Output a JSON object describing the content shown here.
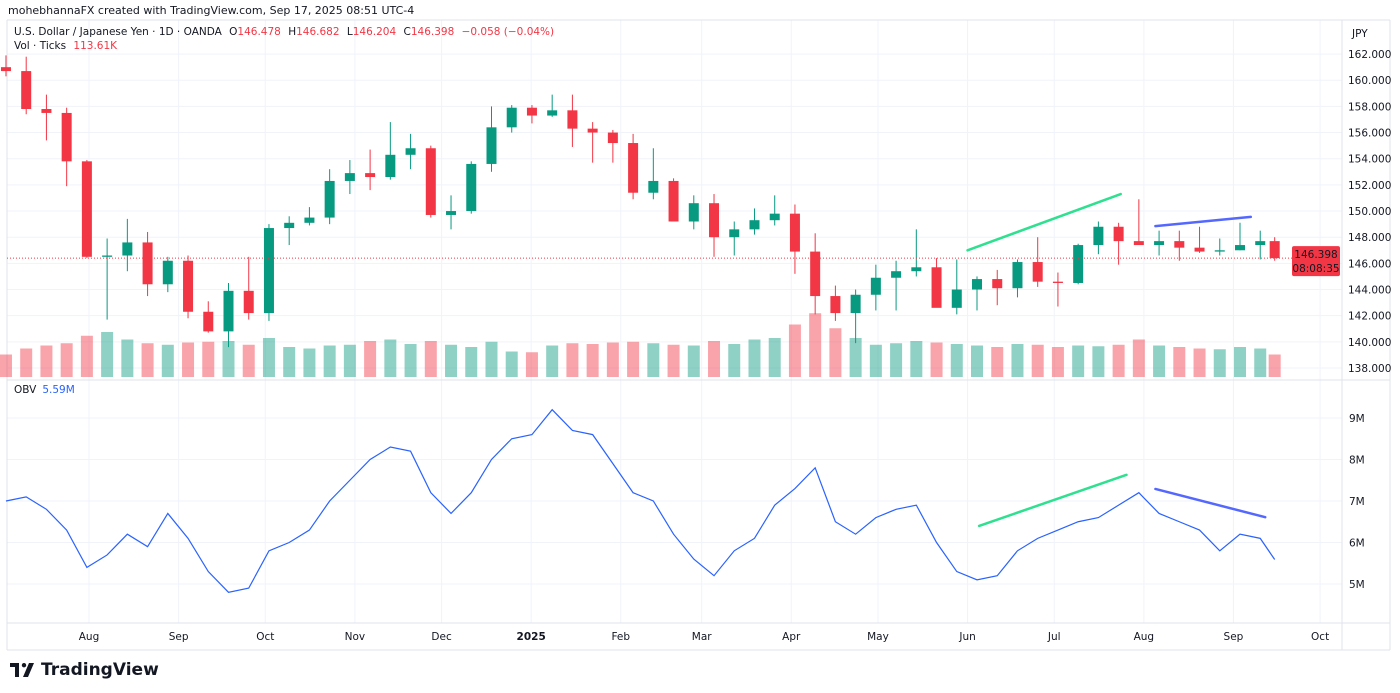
{
  "caption": "mohebhannaFX created with TradingView.com, Sep 17, 2025 08:51 UTC-4",
  "legend": {
    "symbol": "U.S. Dollar / Japanese Yen · 1D · OANDA",
    "open_label": "O",
    "open": "146.478",
    "high_label": "H",
    "high": "146.682",
    "low_label": "L",
    "low": "146.204",
    "close_label": "C",
    "close": "146.398",
    "change": "−0.058 (−0.04%)",
    "volume_label": "Vol · Ticks",
    "volume": "113.61K"
  },
  "obv_legend": {
    "label": "OBV",
    "value": "5.59M"
  },
  "currency": "JPY",
  "last_price": {
    "price": "146.398",
    "countdown": "08:08:35"
  },
  "footer": {
    "logo_text": "TradingView"
  },
  "colors": {
    "up": "#089981",
    "down": "#F23645",
    "obv": "#2962FF",
    "trend_green": "#2EE08F",
    "trend_blue": "#5468FF"
  },
  "chart_data": {
    "type": "candlestick",
    "price_ticks": [
      "138.000",
      "140.000",
      "142.000",
      "144.000",
      "146.000",
      "148.000",
      "150.000",
      "152.000",
      "154.000",
      "156.000",
      "158.000",
      "160.000",
      "162.000"
    ],
    "obv_ticks": [
      "5M",
      "6M",
      "7M",
      "8M",
      "9M"
    ],
    "time_ticks": [
      {
        "date": "2024-08-01",
        "label": "Aug"
      },
      {
        "date": "2024-09-01",
        "label": "Sep"
      },
      {
        "date": "2024-10-01",
        "label": "Oct"
      },
      {
        "date": "2024-11-01",
        "label": "Nov"
      },
      {
        "date": "2024-12-01",
        "label": "Dec"
      },
      {
        "date": "2025-01-01",
        "label": "2025",
        "bold": true
      },
      {
        "date": "2025-02-01",
        "label": "Feb"
      },
      {
        "date": "2025-03-01",
        "label": "Mar"
      },
      {
        "date": "2025-04-01",
        "label": "Apr"
      },
      {
        "date": "2025-05-01",
        "label": "May"
      },
      {
        "date": "2025-06-01",
        "label": "Jun"
      },
      {
        "date": "2025-07-01",
        "label": "Jul"
      },
      {
        "date": "2025-08-01",
        "label": "Aug"
      },
      {
        "date": "2025-09-01",
        "label": "Sep"
      },
      {
        "date": "2025-10-01",
        "label": "Oct"
      }
    ],
    "columns": [
      "date",
      "open",
      "high",
      "low",
      "close",
      "volume",
      "obv_millions"
    ],
    "bars": [
      [
        "2024-07-05",
        161.0,
        161.9,
        160.3,
        160.7,
        300,
        7.0
      ],
      [
        "2024-07-12",
        160.7,
        161.8,
        157.4,
        157.8,
        380,
        7.1
      ],
      [
        "2024-07-19",
        157.8,
        158.9,
        155.4,
        157.5,
        420,
        6.8
      ],
      [
        "2024-07-26",
        157.5,
        157.9,
        151.9,
        153.8,
        450,
        6.3
      ],
      [
        "2024-08-02",
        153.8,
        153.9,
        146.4,
        146.5,
        550,
        5.4
      ],
      [
        "2024-08-09",
        146.5,
        147.9,
        141.7,
        146.6,
        600,
        5.7
      ],
      [
        "2024-08-16",
        146.6,
        149.4,
        145.4,
        147.6,
        500,
        6.2
      ],
      [
        "2024-08-23",
        147.6,
        148.4,
        143.5,
        144.4,
        450,
        5.9
      ],
      [
        "2024-08-30",
        144.4,
        146.5,
        143.8,
        146.2,
        430,
        6.7
      ],
      [
        "2024-09-06",
        146.2,
        146.6,
        141.8,
        142.3,
        460,
        6.1
      ],
      [
        "2024-09-13",
        142.3,
        143.1,
        140.7,
        140.8,
        470,
        5.3
      ],
      [
        "2024-09-20",
        140.8,
        144.5,
        139.6,
        143.9,
        480,
        4.8
      ],
      [
        "2024-09-27",
        143.9,
        146.5,
        141.7,
        142.2,
        430,
        4.9
      ],
      [
        "2024-10-04",
        142.2,
        149.0,
        141.6,
        148.7,
        520,
        5.8
      ],
      [
        "2024-10-11",
        148.7,
        149.6,
        147.4,
        149.1,
        400,
        6.0
      ],
      [
        "2024-10-18",
        149.1,
        150.3,
        148.9,
        149.5,
        380,
        6.3
      ],
      [
        "2024-10-25",
        149.5,
        153.2,
        149.0,
        152.3,
        420,
        7.0
      ],
      [
        "2024-11-01",
        152.3,
        153.9,
        151.3,
        152.9,
        430,
        7.5
      ],
      [
        "2024-11-08",
        152.9,
        154.7,
        151.6,
        152.6,
        480,
        8.0
      ],
      [
        "2024-11-15",
        152.6,
        156.8,
        152.4,
        154.3,
        500,
        8.3
      ],
      [
        "2024-11-22",
        154.3,
        155.9,
        153.2,
        154.8,
        440,
        8.2
      ],
      [
        "2024-11-29",
        154.8,
        155.0,
        149.5,
        149.7,
        480,
        7.2
      ],
      [
        "2024-12-06",
        149.7,
        151.2,
        148.6,
        150.0,
        430,
        6.7
      ],
      [
        "2024-12-13",
        150.0,
        153.8,
        149.8,
        153.6,
        400,
        7.2
      ],
      [
        "2024-12-20",
        153.6,
        158.0,
        153.0,
        156.4,
        470,
        8.0
      ],
      [
        "2024-12-27",
        156.4,
        158.1,
        156.0,
        157.9,
        340,
        8.5
      ],
      [
        "2025-01-03",
        157.9,
        158.1,
        156.7,
        157.3,
        330,
        8.6
      ],
      [
        "2025-01-10",
        157.3,
        158.9,
        157.2,
        157.7,
        420,
        9.2
      ],
      [
        "2025-01-17",
        157.7,
        158.9,
        154.9,
        156.3,
        450,
        8.7
      ],
      [
        "2025-01-24",
        156.3,
        156.8,
        153.7,
        156.0,
        440,
        8.6
      ],
      [
        "2025-01-31",
        156.0,
        156.2,
        153.7,
        155.2,
        460,
        7.9
      ],
      [
        "2025-02-07",
        155.2,
        155.9,
        150.9,
        151.4,
        470,
        7.2
      ],
      [
        "2025-02-14",
        151.4,
        154.8,
        150.9,
        152.3,
        450,
        7.0
      ],
      [
        "2025-02-21",
        152.3,
        152.5,
        149.3,
        149.2,
        430,
        6.2
      ],
      [
        "2025-02-28",
        149.2,
        151.2,
        148.6,
        150.6,
        420,
        5.6
      ],
      [
        "2025-03-07",
        150.6,
        151.3,
        146.5,
        148.0,
        480,
        5.2
      ],
      [
        "2025-03-14",
        148.0,
        149.2,
        146.6,
        148.6,
        440,
        5.8
      ],
      [
        "2025-03-21",
        148.6,
        150.2,
        148.2,
        149.3,
        500,
        6.1
      ],
      [
        "2025-03-28",
        149.3,
        151.2,
        148.9,
        149.8,
        520,
        6.9
      ],
      [
        "2025-04-04",
        149.8,
        150.5,
        145.2,
        146.9,
        700,
        7.3
      ],
      [
        "2025-04-11",
        146.9,
        148.3,
        142.1,
        143.5,
        850,
        7.8
      ],
      [
        "2025-04-18",
        143.5,
        144.3,
        141.6,
        142.2,
        650,
        6.5
      ],
      [
        "2025-04-25",
        142.2,
        144.0,
        139.9,
        143.6,
        520,
        6.2
      ],
      [
        "2025-05-02",
        143.6,
        145.9,
        142.4,
        144.9,
        430,
        6.6
      ],
      [
        "2025-05-09",
        144.9,
        146.2,
        142.4,
        145.4,
        450,
        6.8
      ],
      [
        "2025-05-16",
        145.4,
        148.6,
        145.0,
        145.7,
        480,
        6.9
      ],
      [
        "2025-05-23",
        145.7,
        146.4,
        142.8,
        142.6,
        460,
        6.0
      ],
      [
        "2025-05-30",
        142.6,
        146.3,
        142.1,
        144.0,
        440,
        5.3
      ],
      [
        "2025-06-06",
        144.0,
        145.0,
        142.4,
        144.8,
        420,
        5.1
      ],
      [
        "2025-06-13",
        144.8,
        145.5,
        142.8,
        144.1,
        400,
        5.2
      ],
      [
        "2025-06-20",
        144.1,
        146.3,
        143.4,
        146.1,
        440,
        5.8
      ],
      [
        "2025-06-27",
        146.1,
        148.0,
        144.2,
        144.6,
        430,
        6.1
      ],
      [
        "2025-07-04",
        144.6,
        145.3,
        142.7,
        144.5,
        400,
        6.3
      ],
      [
        "2025-07-11",
        144.5,
        147.5,
        144.4,
        147.4,
        420,
        6.5
      ],
      [
        "2025-07-18",
        147.4,
        149.2,
        146.7,
        148.8,
        410,
        6.6
      ],
      [
        "2025-07-25",
        148.8,
        149.1,
        145.9,
        147.7,
        430,
        6.9
      ],
      [
        "2025-08-01",
        147.7,
        150.9,
        147.6,
        147.4,
        500,
        7.2
      ],
      [
        "2025-08-08",
        147.4,
        148.5,
        146.6,
        147.7,
        420,
        6.7
      ],
      [
        "2025-08-15",
        147.7,
        148.5,
        146.2,
        147.2,
        400,
        6.5
      ],
      [
        "2025-08-22",
        147.2,
        148.8,
        146.8,
        146.9,
        380,
        6.3
      ],
      [
        "2025-08-29",
        146.9,
        147.9,
        146.6,
        147.0,
        370,
        5.8
      ],
      [
        "2025-09-05",
        147.0,
        149.1,
        147.0,
        147.4,
        400,
        6.2
      ],
      [
        "2025-09-12",
        147.4,
        148.5,
        146.3,
        147.7,
        380,
        6.1
      ],
      [
        "2025-09-17",
        147.7,
        148.0,
        146.2,
        146.398,
        300,
        5.59
      ]
    ],
    "annotations": [
      {
        "pane": "price",
        "color": "trend_green",
        "from": [
          "2025-06-01",
          147.0
        ],
        "to": [
          "2025-07-24",
          151.3
        ]
      },
      {
        "pane": "price",
        "color": "trend_blue",
        "from": [
          "2025-08-05",
          148.85
        ],
        "to": [
          "2025-09-07",
          149.55
        ]
      },
      {
        "pane": "obv",
        "color": "trend_green",
        "from": [
          "2025-06-05",
          6.4
        ],
        "to": [
          "2025-07-26",
          7.63
        ]
      },
      {
        "pane": "obv",
        "color": "trend_blue",
        "from": [
          "2025-08-05",
          7.29
        ],
        "to": [
          "2025-09-12",
          6.61
        ]
      }
    ]
  }
}
